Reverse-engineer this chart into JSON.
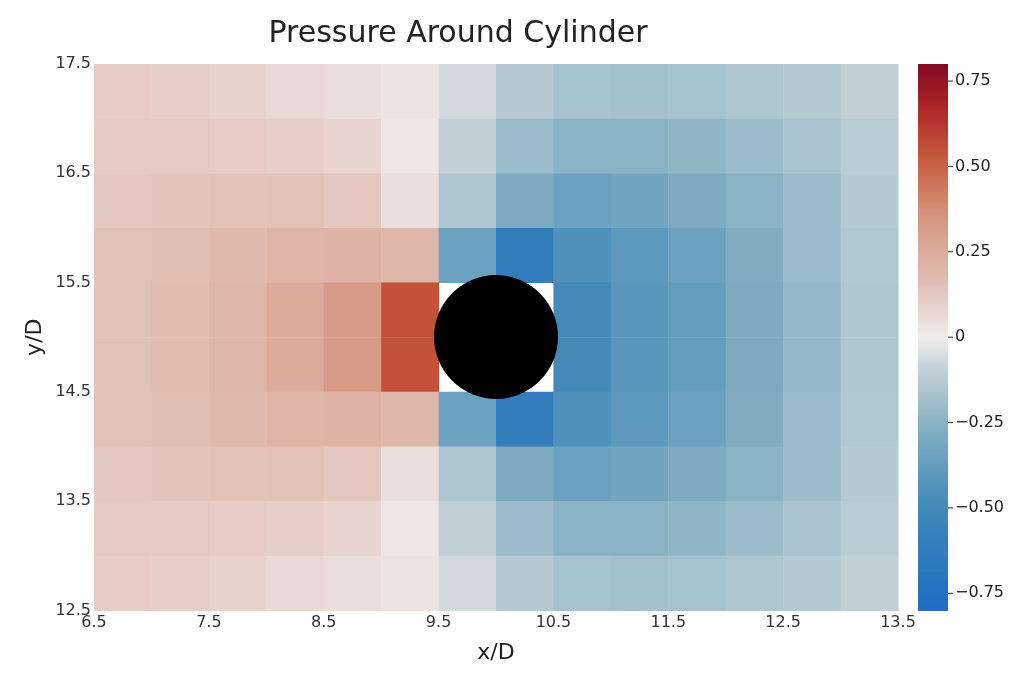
{
  "chart_data": {
    "type": "heatmap",
    "title": "Pressure Around Cylinder",
    "xlabel": "x/D",
    "ylabel": "y/D",
    "xlim": [
      6.5,
      13.5
    ],
    "xticks": [
      6.5,
      7.5,
      8.5,
      9.5,
      10.5,
      11.5,
      12.5,
      13.5
    ],
    "ylim": [
      12.5,
      17.5
    ],
    "yticks": [
      12.5,
      13.5,
      14.5,
      15.5,
      16.5,
      17.5
    ],
    "clim": [
      -0.8,
      0.8
    ],
    "cticks": [
      {
        "value": -0.75,
        "label": "−0.75"
      },
      {
        "value": -0.5,
        "label": "−0.50"
      },
      {
        "value": -0.25,
        "label": "−0.25"
      },
      0,
      {
        "value": 0.25,
        "label": "0.25"
      },
      {
        "value": 0.5,
        "label": "0.50"
      },
      {
        "value": 0.75,
        "label": "0.75"
      }
    ],
    "cells": [
      [
        0.11,
        0.1,
        0.09,
        0.07,
        0.05,
        0.03,
        -0.06,
        -0.13,
        -0.17,
        -0.18,
        -0.17,
        -0.15,
        -0.13,
        -0.1
      ],
      [
        0.12,
        0.12,
        0.11,
        0.1,
        0.08,
        0.02,
        -0.1,
        -0.2,
        -0.25,
        -0.25,
        -0.23,
        -0.2,
        -0.16,
        -0.12
      ],
      [
        0.13,
        0.14,
        0.15,
        0.15,
        0.13,
        0.05,
        -0.15,
        -0.3,
        -0.35,
        -0.33,
        -0.3,
        -0.25,
        -0.2,
        -0.13
      ],
      [
        0.15,
        0.16,
        0.18,
        0.21,
        0.22,
        0.2,
        -0.35,
        -0.6,
        -0.45,
        -0.4,
        -0.35,
        -0.28,
        -0.2,
        -0.14
      ],
      [
        0.15,
        0.17,
        0.2,
        0.25,
        0.33,
        0.55,
        null,
        null,
        -0.5,
        -0.42,
        -0.38,
        -0.3,
        -0.22,
        -0.15
      ],
      [
        0.15,
        0.17,
        0.2,
        0.25,
        0.33,
        0.55,
        null,
        null,
        -0.5,
        -0.42,
        -0.38,
        -0.3,
        -0.22,
        -0.15
      ],
      [
        0.15,
        0.16,
        0.18,
        0.21,
        0.22,
        0.2,
        -0.35,
        -0.6,
        -0.45,
        -0.4,
        -0.35,
        -0.28,
        -0.2,
        -0.14
      ],
      [
        0.13,
        0.14,
        0.15,
        0.15,
        0.13,
        0.05,
        -0.15,
        -0.3,
        -0.35,
        -0.33,
        -0.3,
        -0.25,
        -0.2,
        -0.13
      ],
      [
        0.12,
        0.12,
        0.11,
        0.1,
        0.08,
        0.02,
        -0.1,
        -0.2,
        -0.25,
        -0.25,
        -0.23,
        -0.2,
        -0.16,
        -0.12
      ],
      [
        0.11,
        0.1,
        0.09,
        0.07,
        0.05,
        0.03,
        -0.06,
        -0.13,
        -0.17,
        -0.18,
        -0.17,
        -0.15,
        -0.13,
        -0.1
      ]
    ]
  }
}
